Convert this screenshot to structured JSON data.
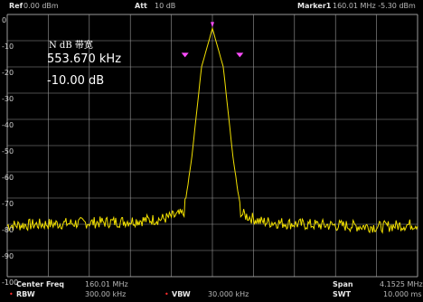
{
  "header": {
    "ref_label": "Ref",
    "ref_value": "0.00 dBm",
    "att_label": "Att",
    "att_value": "10 dB",
    "marker_label": "Marker1",
    "marker_value": "160.01 MHz  -5.30 dBm"
  },
  "overlay": {
    "title": "N dB 带宽",
    "bandwidth": "553.670 kHz",
    "ndb": "-10.00 dB"
  },
  "y_ticks": [
    "0",
    "-10",
    "-20",
    "-30",
    "-40",
    "-50",
    "-60",
    "-70",
    "-80",
    "-90",
    "-100"
  ],
  "footer": {
    "center_freq_label": "Center Freq",
    "center_freq_value": "160.01 MHz",
    "span_label": "Span",
    "span_value": "4.1525 MHz",
    "rbw_label": "RBW",
    "rbw_value": "300.00 kHz",
    "vbw_label": "VBW",
    "vbw_value": "30.000 kHz",
    "swt_label": "SWT",
    "swt_value": "10.000 ms"
  },
  "colors": {
    "trace": "#f2e000",
    "marker": "#ff4dff",
    "grid": "#9a9a9a",
    "background": "#000000"
  },
  "chart_data": {
    "type": "line",
    "x_range_mhz": [
      157.934,
      162.086
    ],
    "ylim": [
      -100,
      0
    ],
    "grid": true,
    "series": [
      {
        "x": [
          157.934,
          158.3,
          158.7,
          159.1,
          159.5,
          159.72,
          159.8,
          159.9,
          160.01,
          160.12,
          160.22,
          160.3,
          160.5,
          160.9,
          161.3,
          161.7,
          162.086
        ],
        "values": [
          -80.5,
          -80,
          -79.5,
          -79,
          -78,
          -76,
          -55,
          -20,
          -5.3,
          -20,
          -55,
          -76,
          -79,
          -80,
          -80.5,
          -81,
          -80
        ]
      }
    ],
    "markers": [
      {
        "x": 160.01,
        "y": -5.3
      },
      {
        "x": 159.733,
        "y": -15.3
      },
      {
        "x": 160.287,
        "y": -15.3
      }
    ]
  }
}
